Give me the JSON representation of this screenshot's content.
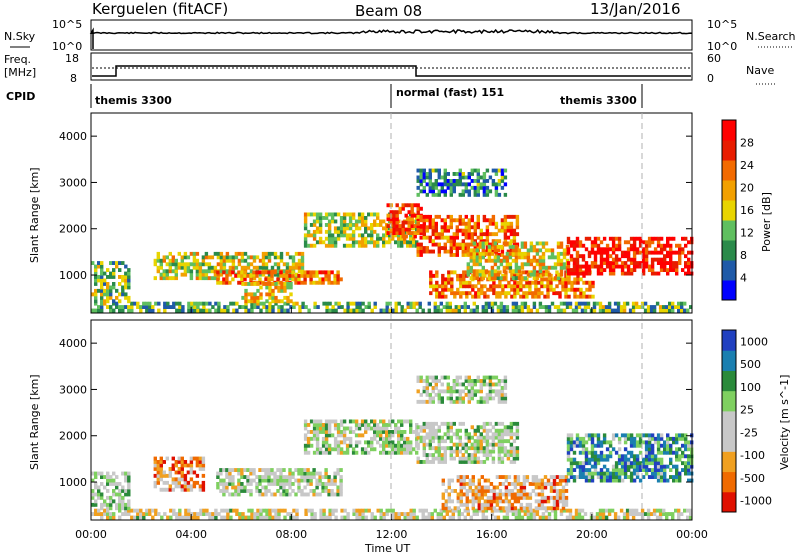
{
  "header": {
    "station": "Kerguelen (fitACF)",
    "beam": "Beam 08",
    "date": "13/Jan/2016"
  },
  "top_panels": {
    "nsky_label": "N.Sky",
    "nsearch_label": "N.Search",
    "freq_label_1": "Freq.",
    "freq_label_2": "[MHz]",
    "nave_label": "Nave",
    "cpid_label": "CPID",
    "noise_ticks": [
      "10^5",
      "10^0"
    ],
    "noise_ticks_right": [
      "10^5",
      "10^0"
    ],
    "freq_ticks": [
      "18",
      "8"
    ],
    "nave_ticks": [
      "60",
      "0"
    ]
  },
  "modes": [
    {
      "label": "themis 3300",
      "start": 0.0,
      "end": 12.0
    },
    {
      "label": "normal (fast) 151",
      "start": 12.0,
      "end": 22.0
    },
    {
      "label": "themis 3300",
      "start": 22.0,
      "end": 24.0
    }
  ],
  "colors": {
    "power": [
      "#0000ff",
      "#1f5aa8",
      "#2a8a4a",
      "#5fbf5f",
      "#e8d400",
      "#f2a000",
      "#f26a00",
      "#e81c00",
      "#ff0000"
    ],
    "velocity": [
      "#2040c0",
      "#1a7fb0",
      "#2a8a3a",
      "#7fd060",
      "#c8c8c8",
      "#c8c8c8",
      "#f0a020",
      "#f06a00",
      "#e01000"
    ]
  },
  "chart_data": [
    {
      "type": "heatmap",
      "title": "",
      "xlabel": "",
      "ylabel": "Slant Range [km]",
      "xlim": [
        0,
        24
      ],
      "ylim": [
        180,
        4500
      ],
      "yticks": [
        "1000",
        "2000",
        "3000",
        "4000"
      ],
      "colorbar_label": "Power [dB]",
      "colorbar_ticks": [
        "4",
        "8",
        "12",
        "16",
        "20",
        "24",
        "28"
      ],
      "regions": [
        {
          "t0": 0.0,
          "t1": 24.0,
          "r0": 200,
          "r1": 420,
          "level": 0.35
        },
        {
          "t0": 0.0,
          "t1": 1.5,
          "r0": 400,
          "r1": 1300,
          "level": 0.4
        },
        {
          "t0": 2.5,
          "t1": 8.5,
          "r0": 900,
          "r1": 1500,
          "level": 0.5
        },
        {
          "t0": 5.0,
          "t1": 10.0,
          "r0": 800,
          "r1": 1100,
          "level": 0.7
        },
        {
          "t0": 6.0,
          "t1": 8.0,
          "r0": 400,
          "r1": 800,
          "level": 0.55
        },
        {
          "t0": 8.5,
          "t1": 13.0,
          "r0": 1600,
          "r1": 2300,
          "level": 0.45
        },
        {
          "t0": 11.8,
          "t1": 13.2,
          "r0": 1800,
          "r1": 2500,
          "level": 0.85
        },
        {
          "t0": 13.0,
          "t1": 17.0,
          "r0": 1400,
          "r1": 2300,
          "level": 0.75
        },
        {
          "t0": 13.5,
          "t1": 20.0,
          "r0": 500,
          "r1": 1100,
          "level": 0.7
        },
        {
          "t0": 15.0,
          "t1": 19.0,
          "r0": 900,
          "r1": 1700,
          "level": 0.55
        },
        {
          "t0": 19.0,
          "t1": 24.0,
          "r0": 1000,
          "r1": 1800,
          "level": 0.9
        },
        {
          "t0": 13.0,
          "t1": 16.5,
          "r0": 2700,
          "r1": 3300,
          "level": 0.25
        }
      ]
    },
    {
      "type": "heatmap",
      "title": "",
      "xlabel": "Time UT",
      "ylabel": "Slant Range [km]",
      "xlim": [
        0,
        24
      ],
      "ylim": [
        180,
        4500
      ],
      "xticks": [
        "00:00",
        "04:00",
        "08:00",
        "12:00",
        "16:00",
        "20:00",
        "00:00"
      ],
      "yticks": [
        "1000",
        "2000",
        "3000",
        "4000"
      ],
      "colorbar_label": "Velocity [m s^-1]",
      "colorbar_ticks": [
        "1000",
        "500",
        "100",
        "25",
        "-25",
        "-100",
        "-500",
        "-1000"
      ],
      "regions": [
        {
          "t0": 0.0,
          "t1": 24.0,
          "r0": 200,
          "r1": 420,
          "level": 0.55
        },
        {
          "t0": 0.0,
          "t1": 1.5,
          "r0": 400,
          "r1": 1200,
          "level": 0.45
        },
        {
          "t0": 2.5,
          "t1": 4.5,
          "r0": 800,
          "r1": 1500,
          "level": 0.75
        },
        {
          "t0": 5.0,
          "t1": 10.0,
          "r0": 700,
          "r1": 1300,
          "level": 0.5
        },
        {
          "t0": 8.5,
          "t1": 13.0,
          "r0": 1600,
          "r1": 2300,
          "level": 0.5
        },
        {
          "t0": 13.0,
          "t1": 17.0,
          "r0": 1400,
          "r1": 2300,
          "level": 0.5
        },
        {
          "t0": 14.0,
          "t1": 19.0,
          "r0": 400,
          "r1": 1100,
          "level": 0.7
        },
        {
          "t0": 19.0,
          "t1": 24.0,
          "r0": 1000,
          "r1": 2000,
          "level": 0.25
        },
        {
          "t0": 13.0,
          "t1": 16.5,
          "r0": 2700,
          "r1": 3300,
          "level": 0.5
        }
      ]
    }
  ]
}
